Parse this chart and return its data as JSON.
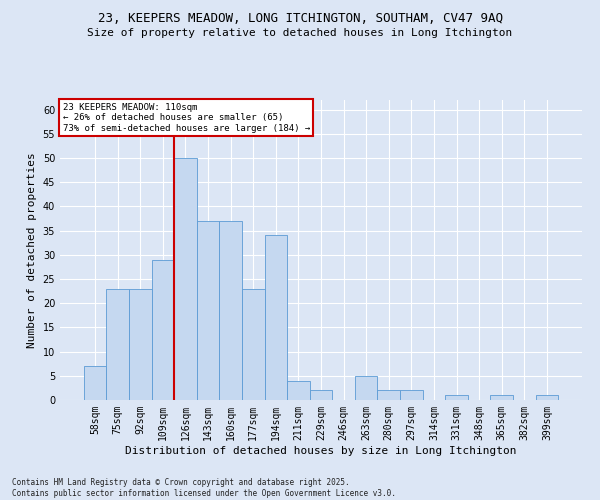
{
  "title_line1": "23, KEEPERS MEADOW, LONG ITCHINGTON, SOUTHAM, CV47 9AQ",
  "title_line2": "Size of property relative to detached houses in Long Itchington",
  "xlabel": "Distribution of detached houses by size in Long Itchington",
  "ylabel": "Number of detached properties",
  "footer": "Contains HM Land Registry data © Crown copyright and database right 2025.\nContains public sector information licensed under the Open Government Licence v3.0.",
  "categories": [
    "58sqm",
    "75sqm",
    "92sqm",
    "109sqm",
    "126sqm",
    "143sqm",
    "160sqm",
    "177sqm",
    "194sqm",
    "211sqm",
    "229sqm",
    "246sqm",
    "263sqm",
    "280sqm",
    "297sqm",
    "314sqm",
    "331sqm",
    "348sqm",
    "365sqm",
    "382sqm",
    "399sqm"
  ],
  "values": [
    7,
    23,
    23,
    29,
    50,
    37,
    37,
    23,
    34,
    4,
    2,
    0,
    5,
    2,
    2,
    0,
    1,
    0,
    1,
    0,
    1
  ],
  "bar_color": "#c5d8f0",
  "bar_edge_color": "#5b9bd5",
  "vline_x": 3.5,
  "vline_color": "#cc0000",
  "annotation_text": "23 KEEPERS MEADOW: 110sqm\n← 26% of detached houses are smaller (65)\n73% of semi-detached houses are larger (184) →",
  "annotation_box_color": "#ffffff",
  "annotation_box_edge": "#cc0000",
  "ylim": [
    0,
    62
  ],
  "yticks": [
    0,
    5,
    10,
    15,
    20,
    25,
    30,
    35,
    40,
    45,
    50,
    55,
    60
  ],
  "bg_color": "#dce6f5",
  "plot_bg_color": "#dce6f5",
  "grid_color": "#ffffff",
  "title_fontsize": 9,
  "subtitle_fontsize": 8,
  "tick_fontsize": 7,
  "label_fontsize": 8,
  "annotation_fontsize": 6.5,
  "footer_fontsize": 5.5
}
